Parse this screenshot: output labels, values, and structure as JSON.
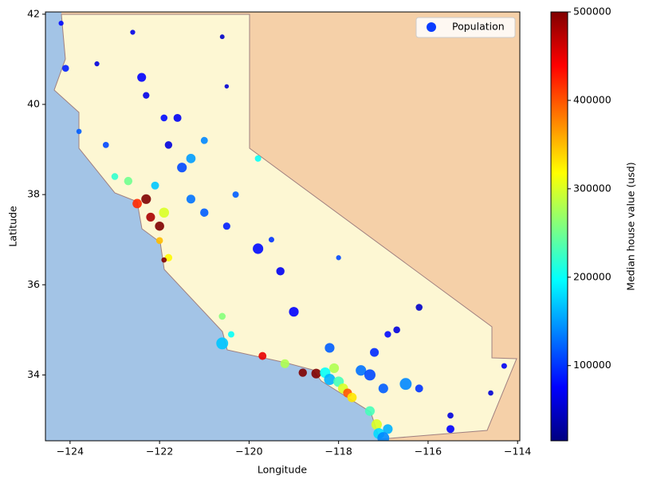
{
  "chart_data": {
    "type": "scatter",
    "xlabel": "Longitude",
    "ylabel": "Latitude",
    "xlim": [
      -124.55,
      -113.95
    ],
    "ylim": [
      32.54,
      42.05
    ],
    "xticks": [
      {
        "value": -124,
        "label": "−124"
      },
      {
        "value": -122,
        "label": "−122"
      },
      {
        "value": -120,
        "label": "−120"
      },
      {
        "value": -118,
        "label": "−118"
      },
      {
        "value": -116,
        "label": "−116"
      },
      {
        "value": -114,
        "label": "−114"
      }
    ],
    "yticks": [
      34,
      36,
      38,
      40,
      42
    ],
    "colormap": "jet",
    "color_label": "Median house value (usd)",
    "clim": [
      15000,
      500000
    ],
    "cticks": [
      100000,
      200000,
      300000,
      400000,
      500000
    ],
    "legend": "upper right",
    "legend_color": "#0a3cff",
    "series": [
      {
        "name": "Population",
        "x": [
          -124.2,
          -124.1,
          -123.8,
          -123.2,
          -122.4,
          -122.3,
          -121.6,
          -121.8,
          -121.5,
          -121.3,
          -121.0,
          -120.6,
          -120.5,
          -123.0,
          -122.7,
          -122.5,
          -122.3,
          -122.2,
          -122.0,
          -121.9,
          -122.0,
          -121.8,
          -121.9,
          -121.3,
          -121.0,
          -120.5,
          -119.8,
          -119.3,
          -119.0,
          -120.6,
          -120.4,
          -119.7,
          -119.2,
          -118.8,
          -118.5,
          -118.3,
          -118.2,
          -118.0,
          -117.9,
          -117.8,
          -117.7,
          -118.1,
          -117.5,
          -117.3,
          -117.2,
          -117.0,
          -116.5,
          -116.2,
          -117.3,
          -117.15,
          -117.1,
          -116.9,
          -117.0,
          -115.5,
          -115.5,
          -114.6,
          -116.2,
          -116.9,
          -118.2,
          -119.5,
          -120.3,
          -122.1,
          -122.6,
          -118.0,
          -114.3,
          -120.6,
          -116.7,
          -119.8,
          -121.9,
          -123.4
        ],
        "y": [
          41.8,
          40.8,
          39.4,
          39.1,
          40.6,
          40.2,
          39.7,
          39.1,
          38.6,
          38.8,
          39.2,
          41.5,
          40.4,
          38.4,
          38.3,
          37.8,
          37.9,
          37.5,
          37.3,
          37.6,
          36.98,
          36.6,
          36.55,
          37.9,
          37.6,
          37.3,
          36.8,
          36.3,
          35.4,
          35.3,
          34.9,
          34.42,
          34.25,
          34.05,
          34.03,
          34.05,
          33.9,
          33.85,
          33.7,
          33.6,
          33.5,
          34.15,
          34.1,
          34.0,
          34.5,
          33.7,
          33.8,
          33.7,
          33.2,
          32.9,
          32.7,
          32.8,
          32.6,
          32.8,
          33.1,
          33.6,
          35.5,
          34.9,
          34.6,
          37.0,
          38.0,
          38.2,
          41.6,
          36.6,
          34.2,
          34.7,
          35.0,
          38.8,
          39.7,
          40.9
        ],
        "sizes": [
          800,
          1500,
          900,
          1200,
          2500,
          1400,
          2000,
          1800,
          3000,
          2800,
          1600,
          700,
          600,
          1500,
          2200,
          2800,
          3000,
          2500,
          2700,
          3200,
          1500,
          1800,
          900,
          2500,
          2200,
          1700,
          3500,
          2200,
          3000,
          1500,
          1300,
          2000,
          2500,
          2200,
          3000,
          3500,
          4000,
          3500,
          3200,
          2500,
          2800,
          3000,
          3500,
          4000,
          2500,
          3000,
          4500,
          2000,
          3000,
          3500,
          3800,
          3000,
          4500,
          2000,
          1200,
          900,
          1500,
          1400,
          3000,
          1000,
          1300,
          2000,
          800,
          800,
          1000,
          4500,
          1500,
          1300,
          1500,
          800
        ],
        "values": [
          80000,
          90000,
          120000,
          110000,
          75000,
          65000,
          70000,
          60000,
          110000,
          150000,
          140000,
          50000,
          55000,
          220000,
          250000,
          420000,
          500000,
          480000,
          500000,
          300000,
          350000,
          320000,
          500000,
          130000,
          120000,
          90000,
          80000,
          70000,
          75000,
          260000,
          200000,
          450000,
          280000,
          500000,
          500000,
          200000,
          160000,
          230000,
          300000,
          400000,
          330000,
          280000,
          130000,
          110000,
          95000,
          120000,
          140000,
          100000,
          230000,
          300000,
          180000,
          160000,
          140000,
          75000,
          60000,
          55000,
          50000,
          80000,
          120000,
          100000,
          120000,
          170000,
          65000,
          110000,
          70000,
          170000,
          60000,
          200000,
          80000,
          60000
        ]
      }
    ]
  }
}
